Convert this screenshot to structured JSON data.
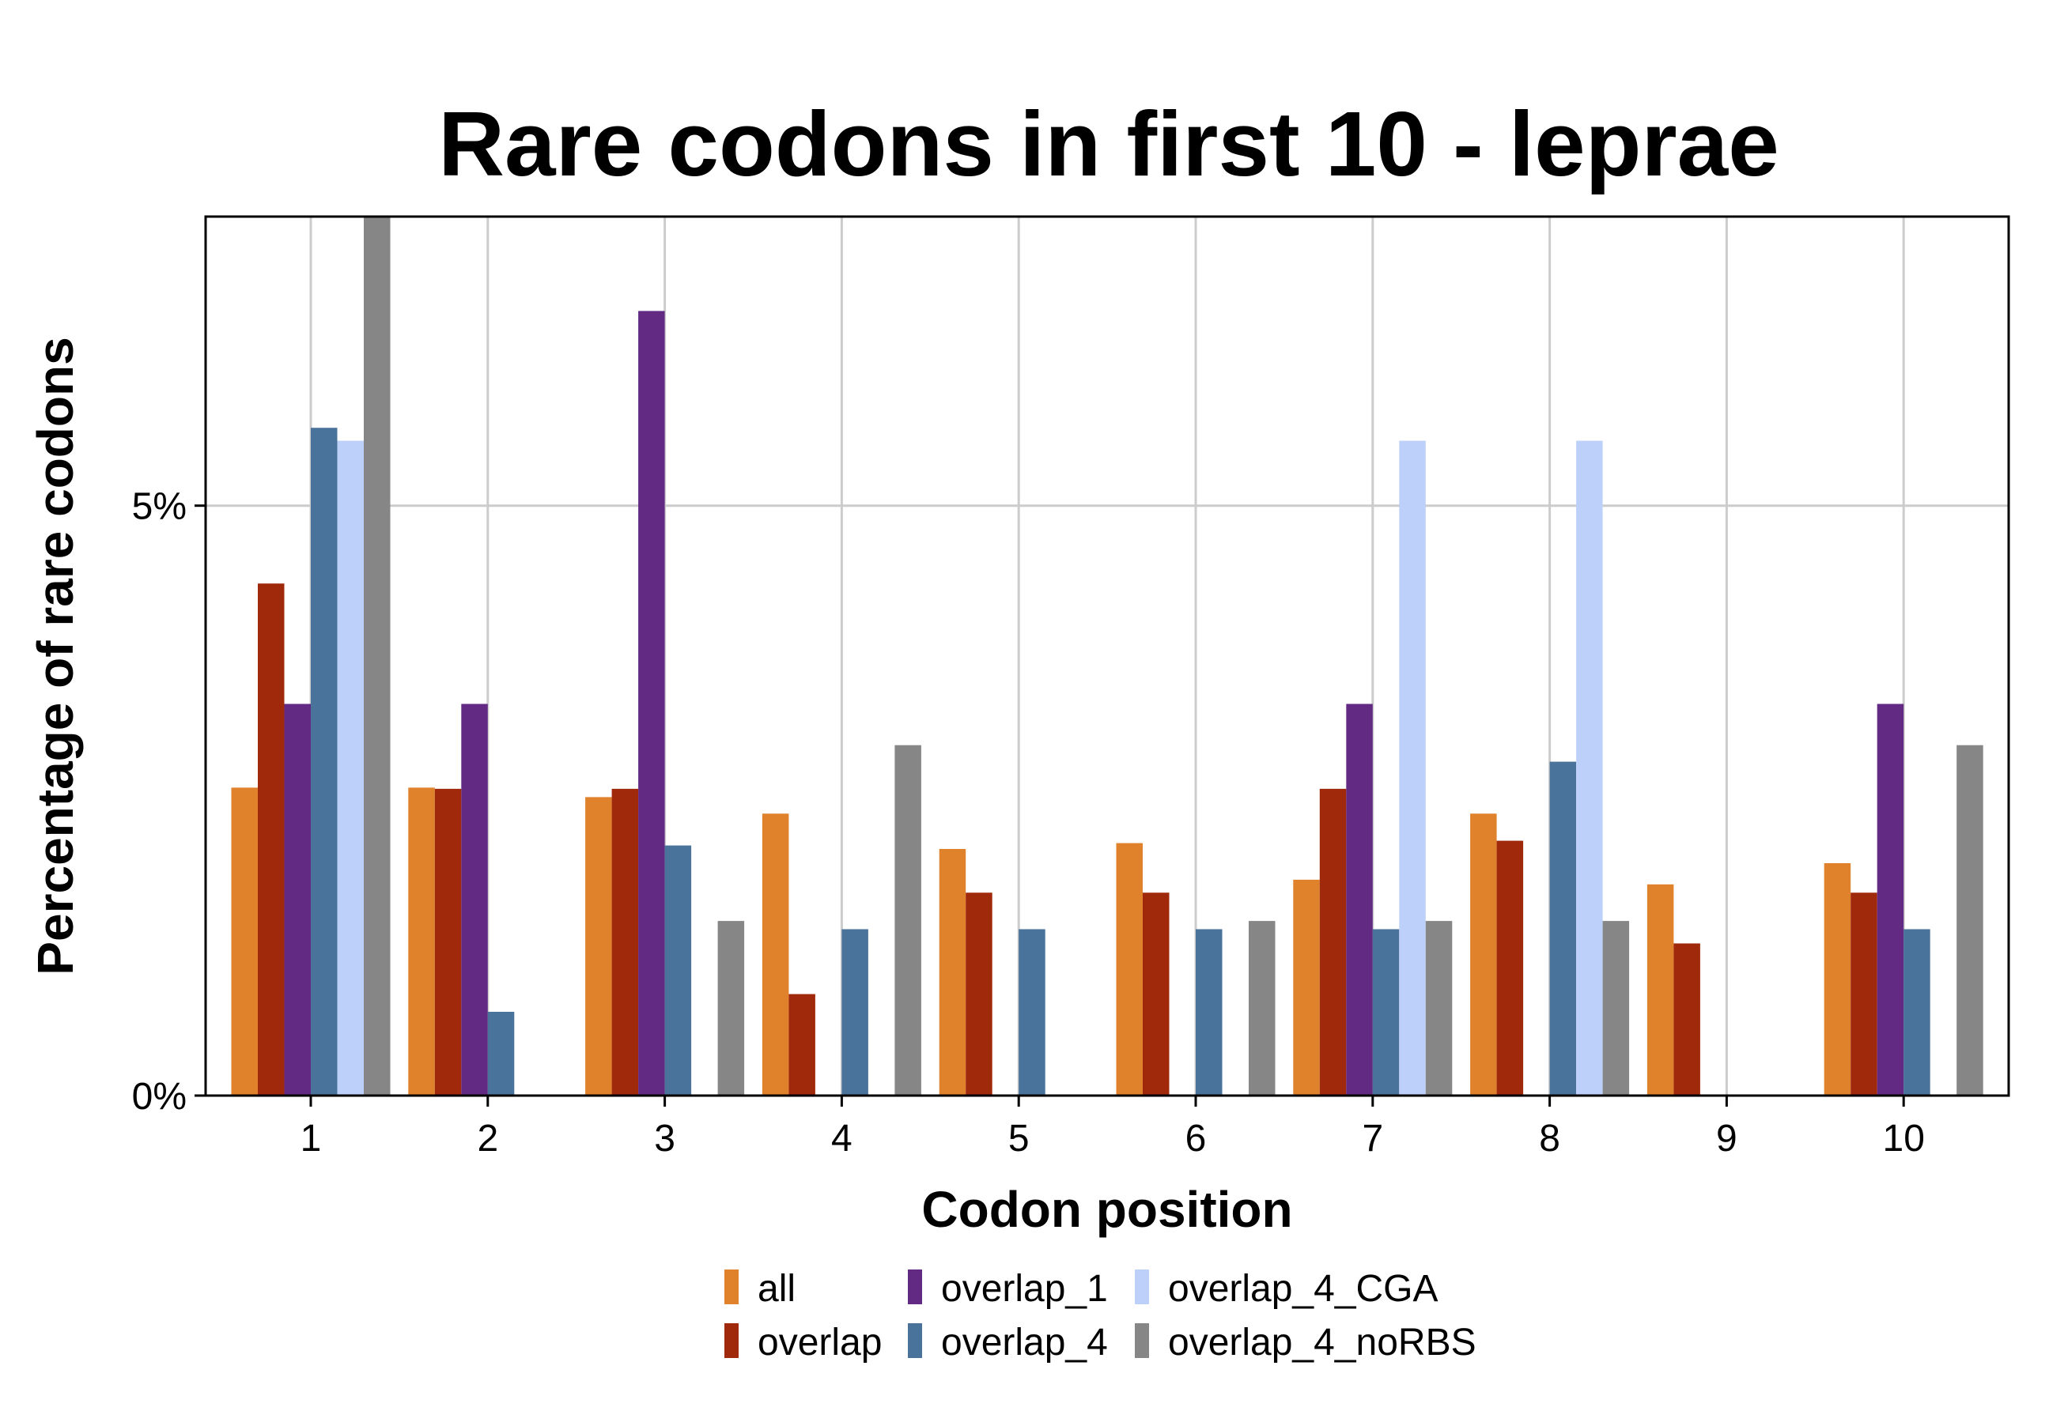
{
  "chart_data": {
    "type": "bar",
    "title": "Rare codons in first 10 - leprae",
    "xlabel": "Codon position",
    "ylabel": "Percentage of rare codons",
    "categories": [
      "1",
      "2",
      "3",
      "4",
      "5",
      "6",
      "7",
      "8",
      "9",
      "10"
    ],
    "yticks": [
      {
        "value": 0,
        "label": "0%"
      },
      {
        "value": 5,
        "label": "5%"
      }
    ],
    "ylim": [
      0,
      7.45
    ],
    "grid": true,
    "legend_position": "bottom",
    "series": [
      {
        "name": "all",
        "color": "#E0812B",
        "values": [
          2.61,
          2.61,
          2.53,
          2.39,
          2.09,
          2.14,
          1.83,
          2.39,
          1.79,
          1.97
        ]
      },
      {
        "name": "overlap",
        "color": "#A1290B",
        "values": [
          4.34,
          2.6,
          2.6,
          0.86,
          1.72,
          1.72,
          2.6,
          2.16,
          1.29,
          1.72
        ]
      },
      {
        "name": "overlap_1",
        "color": "#632A83",
        "values": [
          3.32,
          3.32,
          6.65,
          0,
          0,
          0,
          3.32,
          0,
          0,
          3.32
        ]
      },
      {
        "name": "overlap_4",
        "color": "#4A739C",
        "values": [
          5.66,
          0.71,
          2.12,
          1.41,
          1.41,
          1.41,
          1.41,
          2.83,
          0,
          1.41
        ]
      },
      {
        "name": "overlap_4_CGA",
        "color": "#BDD0F9",
        "values": [
          5.55,
          0,
          0,
          0,
          0,
          0,
          5.55,
          5.55,
          0,
          0
        ]
      },
      {
        "name": "overlap_4_noRBS",
        "color": "#868686",
        "values": [
          7.45,
          0,
          1.48,
          2.97,
          0,
          1.48,
          1.48,
          1.48,
          0,
          2.97
        ]
      }
    ]
  }
}
